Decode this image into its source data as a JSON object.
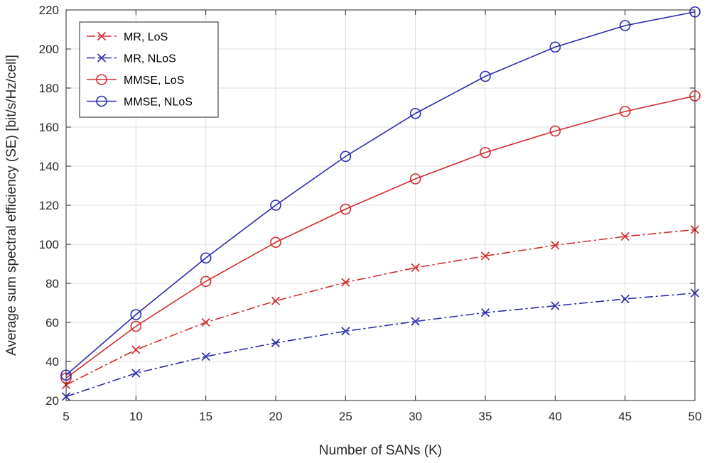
{
  "chart_data": {
    "type": "line",
    "title": "",
    "xlabel": "Number of SANs (K)",
    "ylabel": "Average sum spectral efficiency (SE) [bit/s/Hz/cell]",
    "xlim": [
      5,
      50
    ],
    "ylim": [
      20,
      220
    ],
    "xticks": [
      5,
      10,
      15,
      20,
      25,
      30,
      35,
      40,
      45,
      50
    ],
    "yticks": [
      20,
      40,
      60,
      80,
      100,
      120,
      140,
      160,
      180,
      200,
      220
    ],
    "grid": true,
    "legend_position": "top-left",
    "x": [
      5,
      10,
      15,
      20,
      25,
      30,
      35,
      40,
      45,
      50
    ],
    "series": [
      {
        "name": "MR, LoS",
        "color": "#d42a2a",
        "line": "dashdot",
        "marker": "x",
        "values": [
          28,
          46,
          60,
          71,
          80.5,
          88,
          94,
          99.5,
          104,
          107.5
        ]
      },
      {
        "name": "MR, NLoS",
        "color": "#2a2ab0",
        "line": "dashdot",
        "marker": "x",
        "values": [
          22,
          34,
          42.5,
          49.5,
          55.5,
          60.5,
          65,
          68.5,
          72,
          75
        ]
      },
      {
        "name": "MMSE, LoS",
        "color": "#d42a2a",
        "line": "solid",
        "marker": "circle",
        "values": [
          31.5,
          58,
          81,
          101,
          118,
          133.5,
          147,
          158,
          168,
          176
        ]
      },
      {
        "name": "MMSE, NLoS",
        "color": "#2a2ab0",
        "line": "solid",
        "marker": "circle",
        "values": [
          33,
          64,
          93,
          120,
          145,
          167,
          186,
          201,
          212,
          219
        ]
      }
    ]
  }
}
